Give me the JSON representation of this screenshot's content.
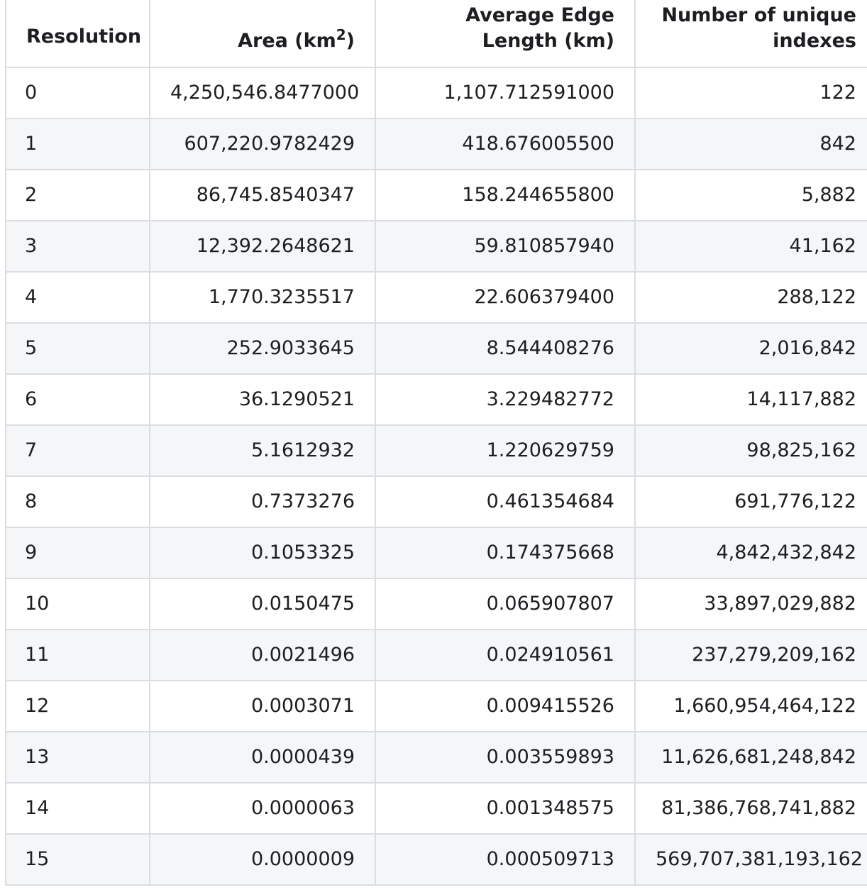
{
  "columns": {
    "resolution": "Resolution",
    "area": {
      "prefix": "Area (km",
      "superscript": "2",
      "suffix": ")"
    },
    "edge": {
      "line1": "Average Edge",
      "line2": "Length (km)"
    },
    "count": {
      "line1": "Number of unique",
      "line2": "indexes"
    }
  },
  "rows": [
    {
      "resolution": "0",
      "area": "4,250,546.8477000",
      "edge": "1,107.712591000",
      "count": "122"
    },
    {
      "resolution": "1",
      "area": "607,220.9782429",
      "edge": "418.676005500",
      "count": "842"
    },
    {
      "resolution": "2",
      "area": "86,745.8540347",
      "edge": "158.244655800",
      "count": "5,882"
    },
    {
      "resolution": "3",
      "area": "12,392.2648621",
      "edge": "59.810857940",
      "count": "41,162"
    },
    {
      "resolution": "4",
      "area": "1,770.3235517",
      "edge": "22.606379400",
      "count": "288,122"
    },
    {
      "resolution": "5",
      "area": "252.9033645",
      "edge": "8.544408276",
      "count": "2,016,842"
    },
    {
      "resolution": "6",
      "area": "36.1290521",
      "edge": "3.229482772",
      "count": "14,117,882"
    },
    {
      "resolution": "7",
      "area": "5.1612932",
      "edge": "1.220629759",
      "count": "98,825,162"
    },
    {
      "resolution": "8",
      "area": "0.7373276",
      "edge": "0.461354684",
      "count": "691,776,122"
    },
    {
      "resolution": "9",
      "area": "0.1053325",
      "edge": "0.174375668",
      "count": "4,842,432,842"
    },
    {
      "resolution": "10",
      "area": "0.0150475",
      "edge": "0.065907807",
      "count": "33,897,029,882"
    },
    {
      "resolution": "11",
      "area": "0.0021496",
      "edge": "0.024910561",
      "count": "237,279,209,162"
    },
    {
      "resolution": "12",
      "area": "0.0003071",
      "edge": "0.009415526",
      "count": "1,660,954,464,122"
    },
    {
      "resolution": "13",
      "area": "0.0000439",
      "edge": "0.003559893",
      "count": "11,626,681,248,842"
    },
    {
      "resolution": "14",
      "area": "0.0000063",
      "edge": "0.001348575",
      "count": "81,386,768,741,882"
    },
    {
      "resolution": "15",
      "area": "0.0000009",
      "edge": "0.000509713",
      "count": "569,707,381,193,162"
    }
  ]
}
